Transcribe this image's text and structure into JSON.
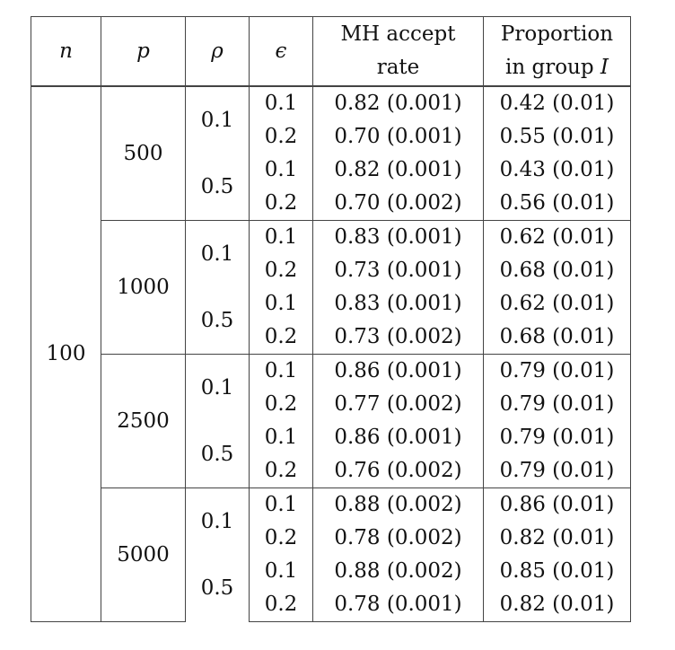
{
  "header": {
    "n": "n",
    "p": "p",
    "rho": "ρ",
    "epsilon": "ϵ",
    "mh_line1": "MH accept",
    "mh_line2": "rate",
    "prop_line1": "Proportion",
    "prop_line2": "in group ",
    "prop_group": "I"
  },
  "n_value": "100",
  "blocks": [
    {
      "p": "500",
      "rows": [
        {
          "rho": "0.1",
          "eps": "0.1",
          "mh": "0.82 (0.001)",
          "prop": "0.42 (0.01)"
        },
        {
          "rho": "",
          "eps": "0.2",
          "mh": "0.70 (0.001)",
          "prop": "0.55 (0.01)"
        },
        {
          "rho": "0.5",
          "eps": "0.1",
          "mh": "0.82 (0.001)",
          "prop": "0.43 (0.01)"
        },
        {
          "rho": "",
          "eps": "0.2",
          "mh": "0.70 (0.002)",
          "prop": "0.56 (0.01)"
        }
      ]
    },
    {
      "p": "1000",
      "rows": [
        {
          "rho": "0.1",
          "eps": "0.1",
          "mh": "0.83 (0.001)",
          "prop": "0.62 (0.01)"
        },
        {
          "rho": "",
          "eps": "0.2",
          "mh": "0.73 (0.001)",
          "prop": "0.68 (0.01)"
        },
        {
          "rho": "0.5",
          "eps": "0.1",
          "mh": "0.83 (0.001)",
          "prop": "0.62 (0.01)"
        },
        {
          "rho": "",
          "eps": "0.2",
          "mh": "0.73 (0.002)",
          "prop": "0.68 (0.01)"
        }
      ]
    },
    {
      "p": "2500",
      "rows": [
        {
          "rho": "0.1",
          "eps": "0.1",
          "mh": "0.86 (0.001)",
          "prop": "0.79 (0.01)"
        },
        {
          "rho": "",
          "eps": "0.2",
          "mh": "0.77 (0.002)",
          "prop": "0.79 (0.01)"
        },
        {
          "rho": "0.5",
          "eps": "0.1",
          "mh": "0.86 (0.001)",
          "prop": "0.79 (0.01)"
        },
        {
          "rho": "",
          "eps": "0.2",
          "mh": "0.76 (0.002)",
          "prop": "0.79 (0.01)"
        }
      ]
    },
    {
      "p": "5000",
      "rows": [
        {
          "rho": "0.1",
          "eps": "0.1",
          "mh": "0.88 (0.002)",
          "prop": "0.86 (0.01)"
        },
        {
          "rho": "",
          "eps": "0.2",
          "mh": "0.78 (0.002)",
          "prop": "0.82 (0.01)"
        },
        {
          "rho": "0.5",
          "eps": "0.1",
          "mh": "0.88 (0.002)",
          "prop": "0.85 (0.01)"
        },
        {
          "rho": "",
          "eps": "0.2",
          "mh": "0.78 (0.001)",
          "prop": "0.82 (0.01)"
        }
      ]
    }
  ]
}
